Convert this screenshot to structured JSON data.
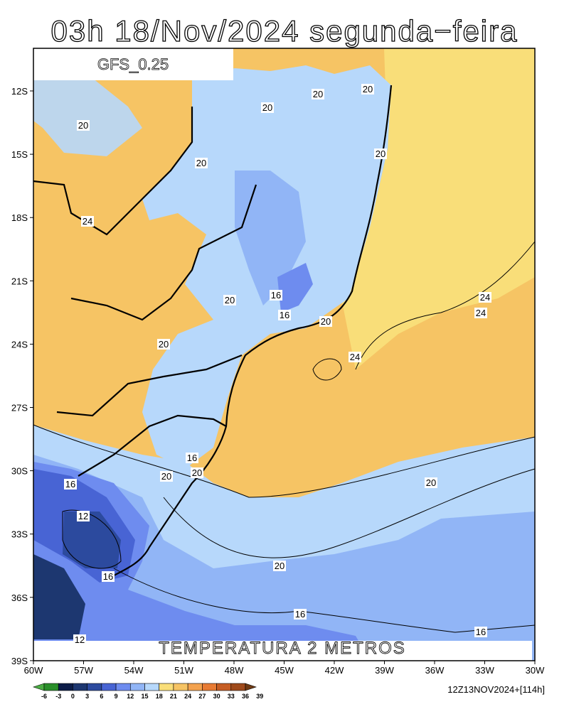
{
  "header": {
    "title": "03h 18/Nov/2024 segunda−feira",
    "model": "GFS_0.25"
  },
  "map": {
    "variable_label": "TEMPERATURA 2 METROS",
    "lat_labels": [
      "12S",
      "15S",
      "18S",
      "21S",
      "24S",
      "27S",
      "30S",
      "33S",
      "36S",
      "39S"
    ],
    "lon_labels": [
      "60W",
      "57W",
      "54W",
      "51W",
      "48W",
      "45W",
      "42W",
      "39W",
      "36W",
      "33W",
      "30W"
    ],
    "contour_labels": [
      20,
      20,
      20,
      20,
      20,
      20,
      20,
      20,
      20,
      20,
      20,
      20,
      20,
      24,
      24,
      24,
      24,
      16,
      16,
      16,
      16,
      16,
      16,
      16,
      12,
      12
    ]
  },
  "colorbar": {
    "labels": [
      -6,
      -3,
      0,
      3,
      6,
      9,
      12,
      15,
      18,
      21,
      24,
      27,
      30,
      33,
      36,
      39
    ],
    "colors": [
      "#4cae44",
      "#2a8f2a",
      "#0c1c48",
      "#1d3770",
      "#2c4a9e",
      "#4864d4",
      "#6e8cef",
      "#91b5f6",
      "#b7d8fb",
      "#f9de79",
      "#f6c464",
      "#f3a24e",
      "#e87b34",
      "#c65d24",
      "#9f4a1b",
      "#6f3a13"
    ]
  },
  "footer": {
    "run_info": "12Z13NOV2024+[114h]"
  }
}
